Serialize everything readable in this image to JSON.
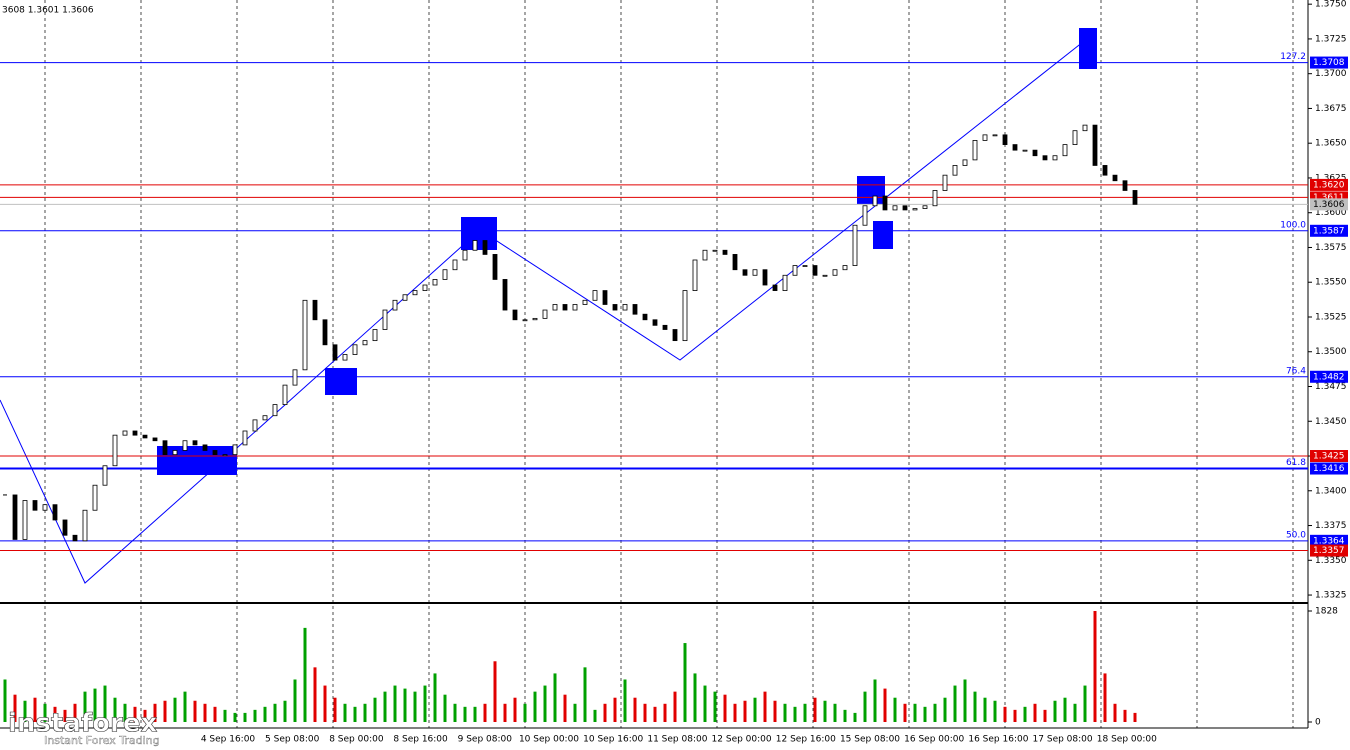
{
  "chart_data": {
    "type": "candlestick",
    "header": "3608 1.3601 1.3606",
    "ylim": [
      1.332,
      1.3753
    ],
    "yticks": [
      {
        "value": 1.375,
        "label": "1.3750"
      },
      {
        "value": 1.3725,
        "label": "1.3725"
      },
      {
        "value": 1.37,
        "label": "1.3700"
      },
      {
        "value": 1.3675,
        "label": "1.3675"
      },
      {
        "value": 1.365,
        "label": "1.3650"
      },
      {
        "value": 1.3625,
        "label": "1.3625"
      },
      {
        "value": 1.36,
        "label": "1.3600"
      },
      {
        "value": 1.3575,
        "label": "1.3575"
      },
      {
        "value": 1.355,
        "label": "1.3550"
      },
      {
        "value": 1.3525,
        "label": "1.3525"
      },
      {
        "value": 1.35,
        "label": "1.3500"
      },
      {
        "value": 1.3475,
        "label": "1.3475"
      },
      {
        "value": 1.345,
        "label": "1.3450"
      },
      {
        "value": 1.3425,
        "label": "1.3425"
      },
      {
        "value": 1.34,
        "label": "1.3400"
      },
      {
        "value": 1.3375,
        "label": "1.3375"
      },
      {
        "value": 1.335,
        "label": "1.3350"
      },
      {
        "value": 1.3325,
        "label": "1.3325"
      }
    ],
    "close": [
      1.3397,
      1.3365,
      1.3393,
      1.3386,
      1.339,
      1.3379,
      1.3368,
      1.3364,
      1.3386,
      1.3404,
      1.3418,
      1.344,
      1.3443,
      1.344,
      1.3438,
      1.3436,
      1.3426,
      1.3429,
      1.3436,
      1.3433,
      1.3429,
      1.3426,
      1.3426,
      1.3433,
      1.3443,
      1.3451,
      1.3454,
      1.3462,
      1.3476,
      1.3487,
      1.3537,
      1.3523,
      1.3505,
      1.3494,
      1.3498,
      1.3505,
      1.3508,
      1.3516,
      1.353,
      1.3537,
      1.3541,
      1.3544,
      1.3548,
      1.3552,
      1.3559,
      1.3566,
      1.3573,
      1.358,
      1.357,
      1.3552,
      1.353,
      1.3523,
      1.3523,
      1.3524,
      1.353,
      1.3534,
      1.353,
      1.3534,
      1.3537,
      1.3544,
      1.3534,
      1.353,
      1.3534,
      1.3527,
      1.3523,
      1.3519,
      1.3516,
      1.3508,
      1.3544,
      1.3566,
      1.3573,
      1.3573,
      1.357,
      1.3559,
      1.3555,
      1.3559,
      1.3548,
      1.3544,
      1.3555,
      1.3562,
      1.3562,
      1.3555,
      1.3555,
      1.3559,
      1.3562,
      1.3591,
      1.3605,
      1.3612,
      1.3602,
      1.3605,
      1.3602,
      1.3603,
      1.3605,
      1.3616,
      1.3627,
      1.3634,
      1.3638,
      1.3652,
      1.3656,
      1.3656,
      1.3649,
      1.3645,
      1.3645,
      1.3641,
      1.3638,
      1.3641,
      1.3649,
      1.3659,
      1.3663,
      1.3634,
      1.3627,
      1.3623,
      1.3616,
      1.3606
    ],
    "volume": [
      700,
      450,
      350,
      400,
      300,
      250,
      200,
      300,
      500,
      550,
      600,
      400,
      300,
      250,
      200,
      300,
      350,
      400,
      500,
      350,
      300,
      250,
      200,
      150,
      150,
      200,
      250,
      300,
      350,
      700,
      1550,
      900,
      600,
      400,
      300,
      250,
      300,
      400,
      500,
      600,
      550,
      500,
      600,
      800,
      450,
      300,
      250,
      250,
      300,
      1000,
      300,
      400,
      300,
      500,
      600,
      800,
      450,
      300,
      900,
      200,
      300,
      400,
      700,
      400,
      300,
      250,
      300,
      500,
      1300,
      800,
      600,
      500,
      450,
      300,
      350,
      400,
      500,
      350,
      300,
      250,
      300,
      400,
      350,
      300,
      200,
      150,
      500,
      700,
      550,
      400,
      300,
      300,
      250,
      300,
      400,
      600,
      700,
      500,
      400,
      350,
      250,
      200,
      250,
      300,
      200,
      350,
      400,
      300,
      600,
      1828,
      800,
      300,
      200,
      150
    ],
    "y2lim": [
      0,
      1828
    ],
    "y2ticks": [
      1828,
      0
    ],
    "up_color": "#00a000",
    "down_color": "#e00000",
    "levels": [
      {
        "value": 1.3708,
        "label": "1.3708",
        "color": "#0000ff",
        "fib": "127.2"
      },
      {
        "value": 1.362,
        "label": "1.3620",
        "color": "#e00000"
      },
      {
        "value": 1.3611,
        "label": "1.3611",
        "color": "#e00000"
      },
      {
        "value": 1.3606,
        "label": "1.3606",
        "color": "#c0c0c0"
      },
      {
        "value": 1.3587,
        "label": "1.3587",
        "color": "#0000ff",
        "fib": "100.0"
      },
      {
        "value": 1.3482,
        "label": "1.3482",
        "color": "#0000ff",
        "fib": "76.4"
      },
      {
        "value": 1.3425,
        "label": "1.3425",
        "color": "#e00000"
      },
      {
        "value": 1.3416,
        "label": "1.3416",
        "color": "#0000ff",
        "fib": "61.8"
      },
      {
        "value": 1.3364,
        "label": "1.3364",
        "color": "#0000ff",
        "fib": "50.0"
      },
      {
        "value": 1.3357,
        "label": "1.3357",
        "color": "#e00000"
      }
    ],
    "x_labels": [
      "4 Sep 16:00",
      "5 Sep 08:00",
      "8 Sep 00:00",
      "8 Sep 16:00",
      "9 Sep 08:00",
      "10 Sep 00:00",
      "10 Sep 16:00",
      "11 Sep 08:00",
      "12 Sep 00:00",
      "12 Sep 16:00",
      "15 Sep 08:00",
      "16 Sep 00:00",
      "16 Sep 16:00",
      "17 Sep 08:00",
      "18 Sep 00:00"
    ],
    "logo": "instaforex",
    "logo_tagline": "Instant Forex Trading"
  }
}
